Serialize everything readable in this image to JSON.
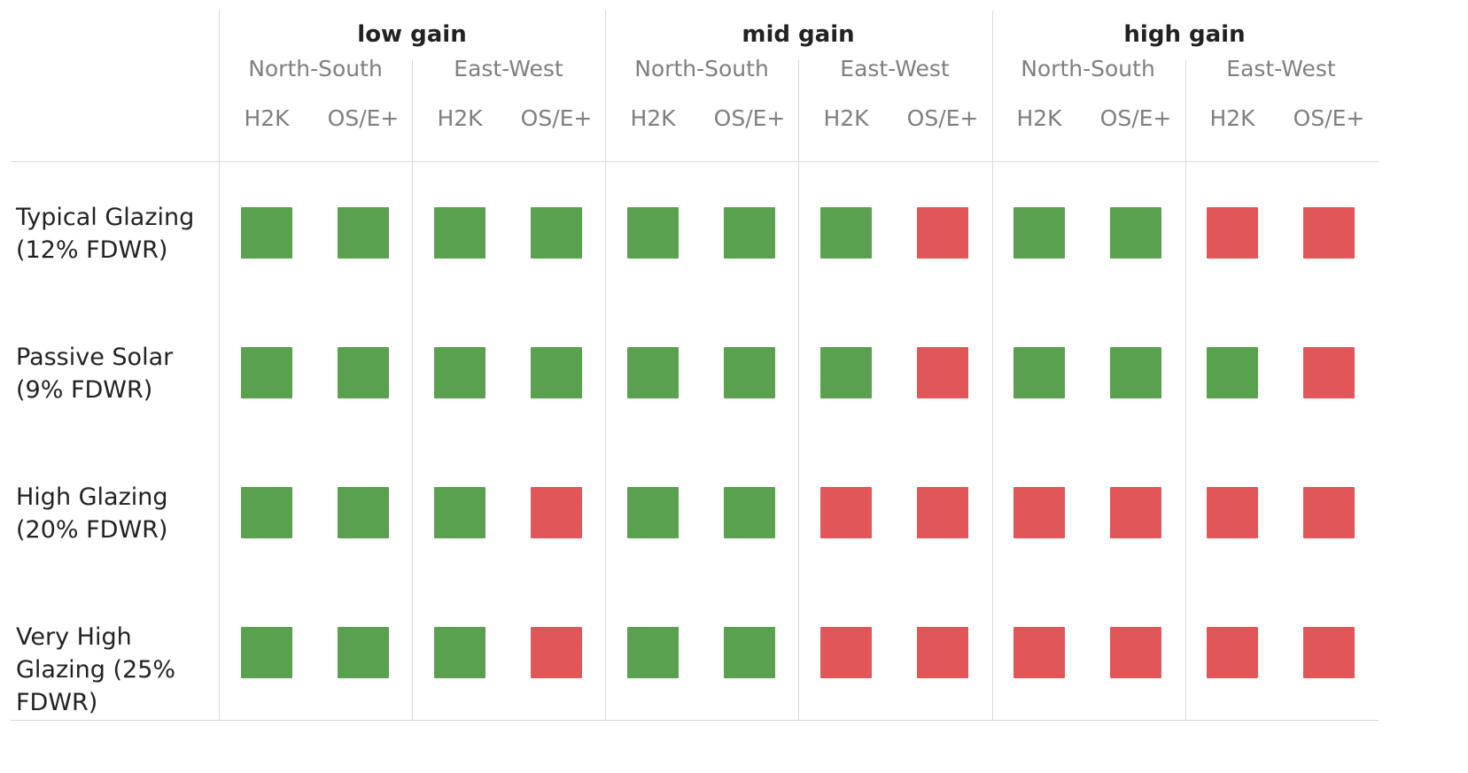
{
  "chart_data": {
    "type": "heatmap",
    "legend": null,
    "groups": [
      {
        "name": "low gain",
        "orientations": [
          {
            "name": "North-South",
            "models": [
              "H2K",
              "OS/E+"
            ]
          },
          {
            "name": "East-West",
            "models": [
              "H2K",
              "OS/E+"
            ]
          }
        ]
      },
      {
        "name": "mid gain",
        "orientations": [
          {
            "name": "North-South",
            "models": [
              "H2K",
              "OS/E+"
            ]
          },
          {
            "name": "East-West",
            "models": [
              "H2K",
              "OS/E+"
            ]
          }
        ]
      },
      {
        "name": "high gain",
        "orientations": [
          {
            "name": "North-South",
            "models": [
              "H2K",
              "OS/E+"
            ]
          },
          {
            "name": "East-West",
            "models": [
              "H2K",
              "OS/E+"
            ]
          }
        ]
      }
    ],
    "rows": [
      {
        "label": "Typical Glazing (12% FDWR)",
        "values": [
          true,
          true,
          true,
          true,
          true,
          true,
          true,
          false,
          true,
          true,
          false,
          false
        ]
      },
      {
        "label": "Passive Solar (9% FDWR)",
        "values": [
          true,
          true,
          true,
          true,
          true,
          true,
          true,
          false,
          true,
          true,
          true,
          false
        ]
      },
      {
        "label": "High Glazing (20% FDWR)",
        "values": [
          true,
          true,
          true,
          false,
          true,
          true,
          false,
          false,
          false,
          false,
          false,
          false
        ]
      },
      {
        "label": "Very High Glazing (25% FDWR)",
        "values": [
          true,
          true,
          true,
          false,
          true,
          true,
          false,
          false,
          false,
          false,
          false,
          false
        ]
      }
    ],
    "colors": {
      "true": "#59a14f",
      "false": "#e15759"
    }
  }
}
